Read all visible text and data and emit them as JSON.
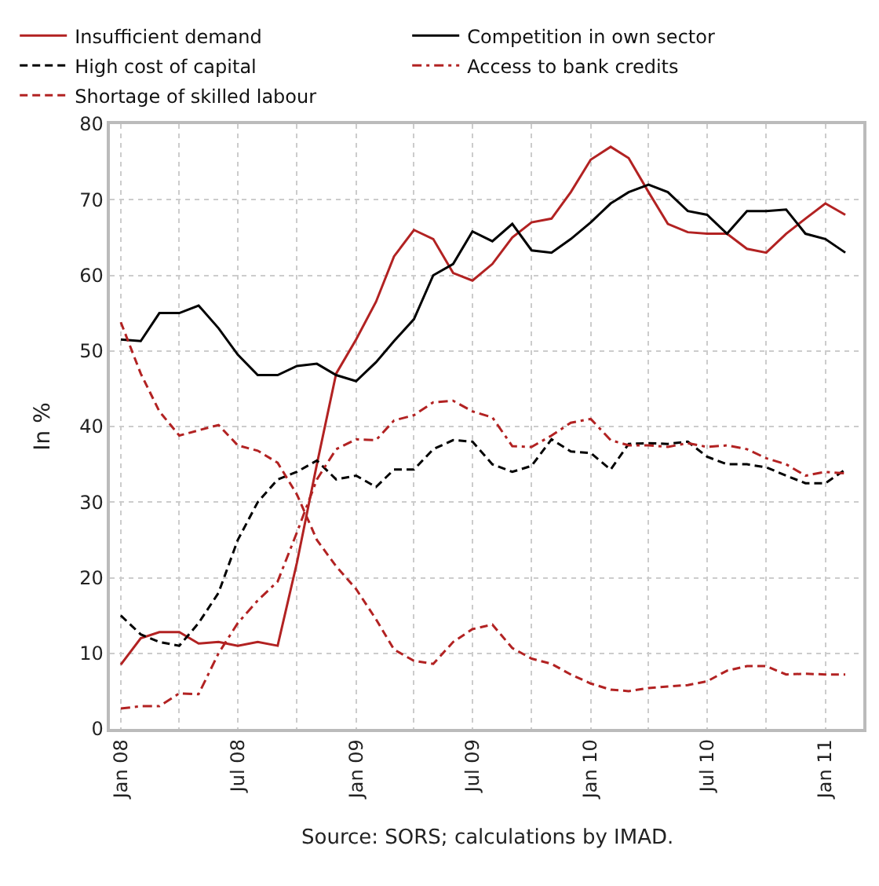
{
  "chart_data": {
    "type": "line",
    "ylabel": "In %",
    "annotations": [
      "Source: SORS; calculations by IMAD."
    ],
    "x": [
      "2008-01",
      "2008-02",
      "2008-03",
      "2008-04",
      "2008-05",
      "2008-06",
      "2008-07",
      "2008-08",
      "2008-09",
      "2008-10",
      "2008-11",
      "2008-12",
      "2009-01",
      "2009-02",
      "2009-03",
      "2009-04",
      "2009-05",
      "2009-06",
      "2009-07",
      "2009-08",
      "2009-09",
      "2009-10",
      "2009-11",
      "2009-12",
      "2010-01",
      "2010-02",
      "2010-03",
      "2010-04",
      "2010-05",
      "2010-06",
      "2010-07",
      "2010-08",
      "2010-09",
      "2010-10",
      "2010-11",
      "2010-12",
      "2011-01",
      "2011-02"
    ],
    "series": [
      {
        "name": "Insufficient demand",
        "color": "#b22222",
        "line_style": "solid",
        "values": [
          8.5,
          12,
          12.8,
          12.8,
          11.3,
          11.5,
          11,
          11.5,
          11,
          22,
          35,
          47,
          51.5,
          56.5,
          62.5,
          66,
          64.8,
          60.3,
          59.3,
          61.5,
          65,
          67,
          67.5,
          71,
          75.3,
          77,
          75.5,
          71,
          66.8,
          65.7,
          65.5,
          65.5,
          63.5,
          63,
          65.5,
          67.5,
          69.5,
          68
        ]
      },
      {
        "name": "Competition in own sector",
        "color": "#000000",
        "line_style": "solid",
        "values": [
          51.5,
          51.3,
          55,
          55,
          56,
          53,
          49.5,
          46.8,
          46.8,
          48,
          48.3,
          46.8,
          46,
          48.5,
          51.3,
          54.2,
          60,
          61.5,
          65.8,
          64.5,
          66.8,
          63.3,
          63,
          64.8,
          67,
          69.5,
          71,
          72,
          71,
          68.5,
          68,
          65.5,
          68.5,
          68.5,
          68.7,
          65.5,
          64.8,
          63
        ]
      },
      {
        "name": "High cost of capital",
        "color": "#000000",
        "line_style": "dashed",
        "values": [
          15,
          12.5,
          11.5,
          11,
          14,
          18,
          25,
          30,
          33,
          34,
          35.5,
          33,
          33.5,
          32,
          34.3,
          34.3,
          37,
          38.2,
          38,
          35,
          34,
          34.8,
          38.3,
          36.7,
          36.5,
          34.3,
          37.7,
          37.8,
          37.7,
          38,
          36,
          35,
          35,
          34.6,
          33.5,
          32.5,
          32.5,
          34.3
        ]
      },
      {
        "name": "Access to bank credits",
        "color": "#b22222",
        "line_style": "dashdot",
        "values": [
          2.7,
          3,
          3,
          4.7,
          4.6,
          10,
          14,
          17,
          19.5,
          26,
          33,
          37,
          38.3,
          38.2,
          40.8,
          41.5,
          43.2,
          43.4,
          42,
          41.2,
          37.4,
          37.3,
          38.8,
          40.5,
          41,
          38.2,
          37.5,
          37.5,
          37.3,
          37.8,
          37.3,
          37.5,
          37,
          35.8,
          35,
          33.5,
          34,
          33.8
        ]
      },
      {
        "name": "Shortage of skilled labour",
        "color": "#b22222",
        "line_style": "dashed",
        "values": [
          53.8,
          47,
          42,
          38.8,
          39.5,
          40.2,
          37.5,
          36.8,
          35.2,
          31,
          25,
          21.5,
          18.5,
          14.5,
          10.5,
          9,
          8.6,
          11.5,
          13.2,
          13.8,
          10.7,
          9.3,
          8.6,
          7.2,
          6,
          5.2,
          5,
          5.4,
          5.6,
          5.8,
          6.3,
          7.7,
          8.3,
          8.3,
          7.2,
          7.3,
          7.2,
          7.2
        ]
      }
    ],
    "xlim": [
      "2007-12-15",
      "2011-03-01"
    ],
    "xticks": [
      {
        "value": "2008-01",
        "label": "Jan 08"
      },
      {
        "value": "2008-04",
        "label": null
      },
      {
        "value": "2008-07",
        "label": "Jul 08"
      },
      {
        "value": "2008-10",
        "label": null
      },
      {
        "value": "2009-01",
        "label": "Jan 09"
      },
      {
        "value": "2009-04",
        "label": null
      },
      {
        "value": "2009-07",
        "label": "Jul 09"
      },
      {
        "value": "2009-10",
        "label": null
      },
      {
        "value": "2010-01",
        "label": "Jan 10"
      },
      {
        "value": "2010-04",
        "label": null
      },
      {
        "value": "2010-07",
        "label": "Jul 10"
      },
      {
        "value": "2010-10",
        "label": null
      },
      {
        "value": "2011-01",
        "label": "Jan 11"
      }
    ],
    "ylim": [
      0,
      80
    ],
    "yticks": [
      0,
      10,
      20,
      30,
      40,
      50,
      60,
      70,
      80
    ],
    "grid": true,
    "legend": "top",
    "marker": "none"
  }
}
